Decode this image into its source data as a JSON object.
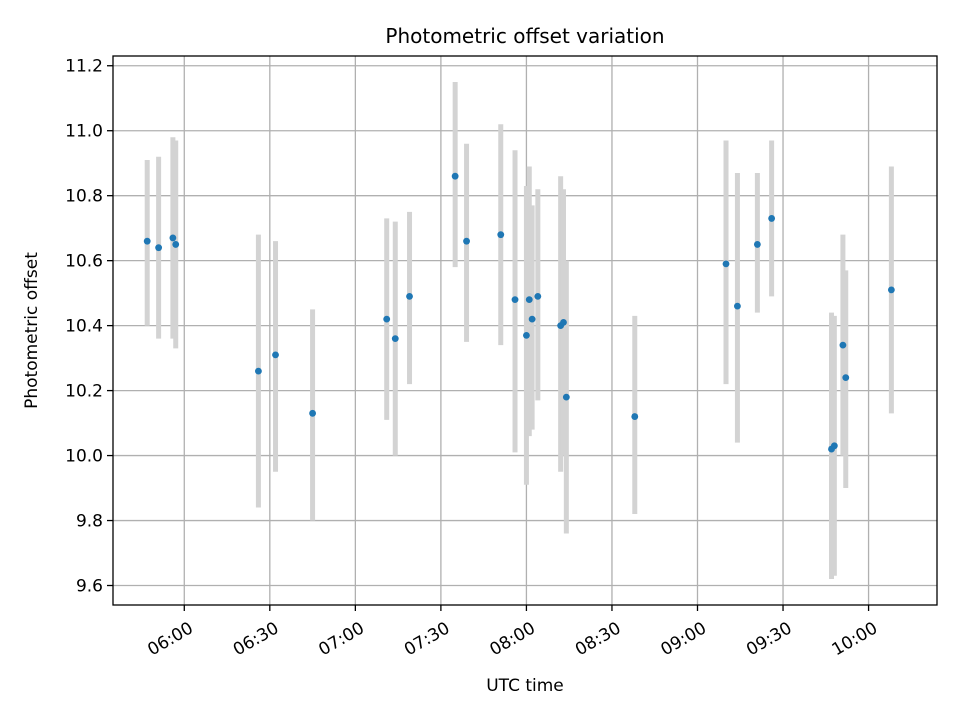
{
  "chart_data": {
    "type": "scatter",
    "title": "Photometric offset variation",
    "xlabel": "UTC time",
    "ylabel": "Photometric offset",
    "x_axis_type": "time",
    "xlim": [
      "05:35",
      "10:24"
    ],
    "ylim": [
      9.54,
      11.23
    ],
    "x_ticks": [
      "06:00",
      "06:30",
      "07:00",
      "07:30",
      "08:00",
      "08:30",
      "09:00",
      "09:30",
      "10:00"
    ],
    "y_ticks": [
      9.6,
      9.8,
      10.0,
      10.2,
      10.4,
      10.6,
      10.8,
      11.0,
      11.2
    ],
    "y_tick_labels": [
      "9.6",
      "9.8",
      "10.0",
      "10.2",
      "10.4",
      "10.6",
      "10.8",
      "11.0",
      "11.2"
    ],
    "grid": true,
    "legend": "none",
    "colors": {
      "marker": "#1f77b4",
      "errorbar": "#d3d3d3",
      "grid": "#b0b0b0"
    },
    "points": [
      {
        "x": "05:47",
        "y": 10.66,
        "ylow": 10.4,
        "yhigh": 10.91
      },
      {
        "x": "05:51",
        "y": 10.64,
        "ylow": 10.36,
        "yhigh": 10.92
      },
      {
        "x": "05:56",
        "y": 10.67,
        "ylow": 10.36,
        "yhigh": 10.98
      },
      {
        "x": "05:57",
        "y": 10.65,
        "ylow": 10.33,
        "yhigh": 10.97
      },
      {
        "x": "06:26",
        "y": 10.26,
        "ylow": 9.84,
        "yhigh": 10.68
      },
      {
        "x": "06:32",
        "y": 10.31,
        "ylow": 9.95,
        "yhigh": 10.66
      },
      {
        "x": "06:45",
        "y": 10.13,
        "ylow": 9.8,
        "yhigh": 10.45
      },
      {
        "x": "07:11",
        "y": 10.42,
        "ylow": 10.11,
        "yhigh": 10.73
      },
      {
        "x": "07:14",
        "y": 10.36,
        "ylow": 10.0,
        "yhigh": 10.72
      },
      {
        "x": "07:19",
        "y": 10.49,
        "ylow": 10.22,
        "yhigh": 10.75
      },
      {
        "x": "07:35",
        "y": 10.86,
        "ylow": 10.58,
        "yhigh": 11.15
      },
      {
        "x": "07:39",
        "y": 10.66,
        "ylow": 10.35,
        "yhigh": 10.96
      },
      {
        "x": "07:51",
        "y": 10.68,
        "ylow": 10.34,
        "yhigh": 11.02
      },
      {
        "x": "07:56",
        "y": 10.48,
        "ylow": 10.01,
        "yhigh": 10.94
      },
      {
        "x": "08:00",
        "y": 10.37,
        "ylow": 9.91,
        "yhigh": 10.83
      },
      {
        "x": "08:01",
        "y": 10.48,
        "ylow": 10.06,
        "yhigh": 10.89
      },
      {
        "x": "08:02",
        "y": 10.42,
        "ylow": 10.08,
        "yhigh": 10.77
      },
      {
        "x": "08:04",
        "y": 10.49,
        "ylow": 10.17,
        "yhigh": 10.82
      },
      {
        "x": "08:12",
        "y": 10.4,
        "ylow": 9.95,
        "yhigh": 10.86
      },
      {
        "x": "08:13",
        "y": 10.41,
        "ylow": 10.0,
        "yhigh": 10.82
      },
      {
        "x": "08:14",
        "y": 10.18,
        "ylow": 9.76,
        "yhigh": 10.6
      },
      {
        "x": "08:38",
        "y": 10.12,
        "ylow": 9.82,
        "yhigh": 10.43
      },
      {
        "x": "09:10",
        "y": 10.59,
        "ylow": 10.22,
        "yhigh": 10.97
      },
      {
        "x": "09:14",
        "y": 10.46,
        "ylow": 10.04,
        "yhigh": 10.87
      },
      {
        "x": "09:21",
        "y": 10.65,
        "ylow": 10.44,
        "yhigh": 10.87
      },
      {
        "x": "09:26",
        "y": 10.73,
        "ylow": 10.49,
        "yhigh": 10.97
      },
      {
        "x": "09:47",
        "y": 10.02,
        "ylow": 9.62,
        "yhigh": 10.44
      },
      {
        "x": "09:48",
        "y": 10.03,
        "ylow": 9.63,
        "yhigh": 10.43
      },
      {
        "x": "09:51",
        "y": 10.34,
        "ylow": 10.0,
        "yhigh": 10.68
      },
      {
        "x": "09:52",
        "y": 10.24,
        "ylow": 9.9,
        "yhigh": 10.57
      },
      {
        "x": "10:08",
        "y": 10.51,
        "ylow": 10.13,
        "yhigh": 10.89
      }
    ]
  }
}
